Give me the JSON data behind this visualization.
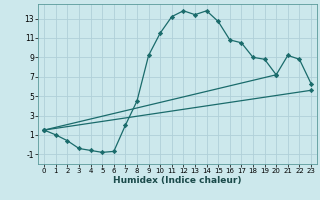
{
  "xlabel": "Humidex (Indice chaleur)",
  "bg_color": "#cce8ec",
  "grid_color": "#b0d0d8",
  "line_color": "#1a6b6b",
  "xlim": [
    -0.5,
    23.5
  ],
  "ylim": [
    -2.0,
    14.5
  ],
  "xticks": [
    0,
    1,
    2,
    3,
    4,
    5,
    6,
    7,
    8,
    9,
    10,
    11,
    12,
    13,
    14,
    15,
    16,
    17,
    18,
    19,
    20,
    21,
    22,
    23
  ],
  "yticks": [
    -1,
    1,
    3,
    5,
    7,
    9,
    11,
    13
  ],
  "line1_x": [
    0,
    1,
    2,
    3,
    4,
    5,
    6,
    7,
    8,
    9,
    10,
    11,
    12,
    13,
    14,
    15,
    16,
    17,
    18,
    19,
    20
  ],
  "line1_y": [
    1.5,
    1.0,
    0.4,
    -0.4,
    -0.6,
    -0.8,
    -0.7,
    2.0,
    4.5,
    9.2,
    11.5,
    13.2,
    13.8,
    13.4,
    13.8,
    12.7,
    10.8,
    10.5,
    9.0,
    8.8,
    7.2
  ],
  "line2_x": [
    0,
    20,
    21,
    22,
    23
  ],
  "line2_y": [
    1.5,
    7.2,
    9.2,
    8.8,
    6.3
  ],
  "line3_x": [
    0,
    23
  ],
  "line3_y": [
    1.5,
    5.6
  ]
}
